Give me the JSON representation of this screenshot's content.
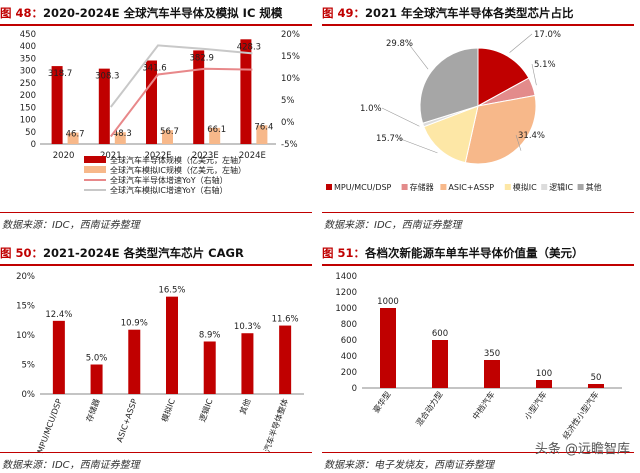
{
  "panels": {
    "p48": {
      "tag": "图 48：",
      "title": "2020-2024E 全球汽车半导体及模拟 IC 规模",
      "source": "数据来源：IDC，西南证券整理"
    },
    "p49": {
      "tag": "图 49：",
      "title": "2021 年全球汽车半导体各类型芯片占比",
      "source": "数据来源：IDC，西南证券整理"
    },
    "p50": {
      "tag": "图 50：",
      "title": "2021-2024E 各类型汽车芯片 CAGR",
      "source": "数据来源：IDC，西南证券整理"
    },
    "p51": {
      "tag": "图 51：",
      "title": "各档次新能源车单车半导体价值量（美元）",
      "source": "数据来源：电子发烧友，西南证券整理"
    }
  },
  "watermark": "头条 @远瞻智库",
  "chart_data": [
    {
      "id": "p48",
      "type": "bar",
      "categories": [
        "2020",
        "2021",
        "2022E",
        "2023E",
        "2024E"
      ],
      "series": [
        {
          "name": "全球汽车半导体规模（亿美元，左轴）",
          "type": "bar",
          "axis": "left",
          "color": "#c00000",
          "values": [
            318.7,
            308.3,
            341.6,
            382.9,
            428.3
          ]
        },
        {
          "name": "全球汽车模拟IC规模（亿美元，左轴）",
          "type": "bar",
          "axis": "left",
          "color": "#f7b88a",
          "values": [
            46.7,
            48.3,
            56.7,
            66.1,
            76.4
          ]
        },
        {
          "name": "全球汽车半导体增速YoY（右轴）",
          "type": "line",
          "axis": "right",
          "color": "#e8888a",
          "values": [
            null,
            -3.3,
            10.8,
            12.1,
            11.9
          ]
        },
        {
          "name": "全球汽车模拟IC增速YoY（右轴）",
          "type": "line",
          "axis": "right",
          "color": "#c8c8c8",
          "values": [
            null,
            3.4,
            17.4,
            16.6,
            15.6
          ]
        }
      ],
      "yleft": {
        "min": 0,
        "max": 450,
        "ticks": [
          "0",
          "50",
          "100",
          "150",
          "200",
          "250",
          "300",
          "350",
          "400",
          "450"
        ]
      },
      "yright": {
        "min": -5,
        "max": 20,
        "ticks": [
          "-5%",
          "0%",
          "5%",
          "10%",
          "15%",
          "20%"
        ]
      },
      "grid": false,
      "legend": "bottom"
    },
    {
      "id": "p49",
      "type": "pie",
      "slices": [
        {
          "name": "MPU/MCU/DSP",
          "value": 17.0,
          "label": "17.0%",
          "color": "#c00000"
        },
        {
          "name": "存储器",
          "value": 5.1,
          "label": "5.1%",
          "color": "#e38b8b"
        },
        {
          "name": "ASIC+ASSP",
          "value": 31.4,
          "label": "31.4%",
          "color": "#f7b88a"
        },
        {
          "name": "模拟IC",
          "value": 15.7,
          "label": "15.7%",
          "color": "#fde7a6"
        },
        {
          "name": "逻辑IC",
          "value": 1.0,
          "label": "1.0%",
          "color": "#dcdcdc"
        },
        {
          "name": "其他",
          "value": 29.8,
          "label": "29.8%",
          "color": "#a6a6a6"
        }
      ],
      "legend": "bottom"
    },
    {
      "id": "p50",
      "type": "bar",
      "categories": [
        "MPU/MCU/DSP",
        "存储器",
        "ASIC+ASSP",
        "模拟IC",
        "逻辑IC",
        "其他",
        "汽车半导体整体"
      ],
      "values": [
        12.4,
        5.0,
        10.9,
        16.5,
        8.9,
        10.3,
        11.6
      ],
      "labels": [
        "12.4%",
        "5.0%",
        "10.9%",
        "16.5%",
        "8.9%",
        "10.3%",
        "11.6%"
      ],
      "color": "#c00000",
      "ylim": [
        0,
        20
      ],
      "yticks": [
        "0%",
        "5%",
        "10%",
        "15%",
        "20%"
      ],
      "grid": false
    },
    {
      "id": "p51",
      "type": "bar",
      "categories": [
        "豪华型",
        "混合动力型",
        "中档汽车",
        "小型汽车",
        "经济性小型汽车"
      ],
      "values": [
        1000,
        600,
        350,
        100,
        50
      ],
      "color": "#c00000",
      "ylim": [
        0,
        1400
      ],
      "yticks": [
        "0",
        "200",
        "400",
        "600",
        "800",
        "1000",
        "1200",
        "1400"
      ],
      "grid": false
    }
  ]
}
